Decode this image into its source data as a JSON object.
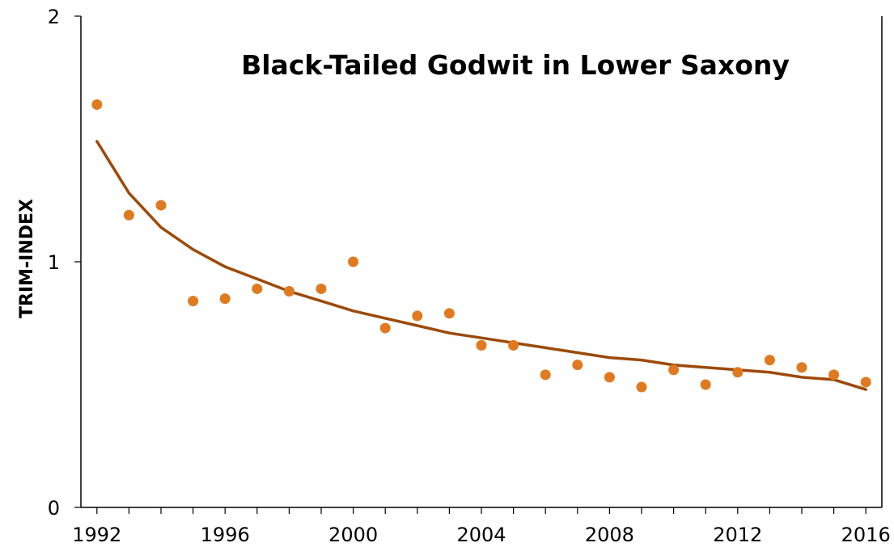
{
  "chart_data": {
    "type": "scatter",
    "title": "Black-Tailed Godwit in Lower Saxony",
    "xlabel": "",
    "ylabel": "TRIM-INDEX",
    "xlim": [
      1991.5,
      2016.5
    ],
    "ylim": [
      0,
      2
    ],
    "x_tick_labels": [
      1992,
      1996,
      2000,
      2004,
      2008,
      2012,
      2016
    ],
    "y_tick_labels": [
      0,
      1,
      2
    ],
    "grid": false,
    "legend": "none",
    "colors": {
      "points": "#E07A1F",
      "trend": "#9C4A0A",
      "axis": "#000000"
    },
    "series": [
      {
        "x": [
          1992,
          1993,
          1994,
          1995,
          1996,
          1997,
          1998,
          1999,
          2000,
          2001,
          2002,
          2003,
          2004,
          2005,
          2006,
          2007,
          2008,
          2009,
          2010,
          2011,
          2012,
          2013,
          2014,
          2015,
          2016
        ],
        "y": [
          1.64,
          1.19,
          1.23,
          0.84,
          0.85,
          0.89,
          0.88,
          0.89,
          1.0,
          0.73,
          0.78,
          0.79,
          0.66,
          0.66,
          0.54,
          0.58,
          0.53,
          0.49,
          0.56,
          0.5,
          0.55,
          0.6,
          0.57,
          0.54,
          0.51
        ]
      }
    ],
    "trendline": {
      "type": "power",
      "x_range": [
        1992,
        2016
      ],
      "y": [
        1.49,
        1.28,
        1.14,
        1.05,
        0.98,
        0.93,
        0.88,
        0.84,
        0.8,
        0.77,
        0.74,
        0.71,
        0.69,
        0.67,
        0.65,
        0.63,
        0.61,
        0.6,
        0.58,
        0.57,
        0.56,
        0.55,
        0.53,
        0.52,
        0.48
      ]
    }
  }
}
